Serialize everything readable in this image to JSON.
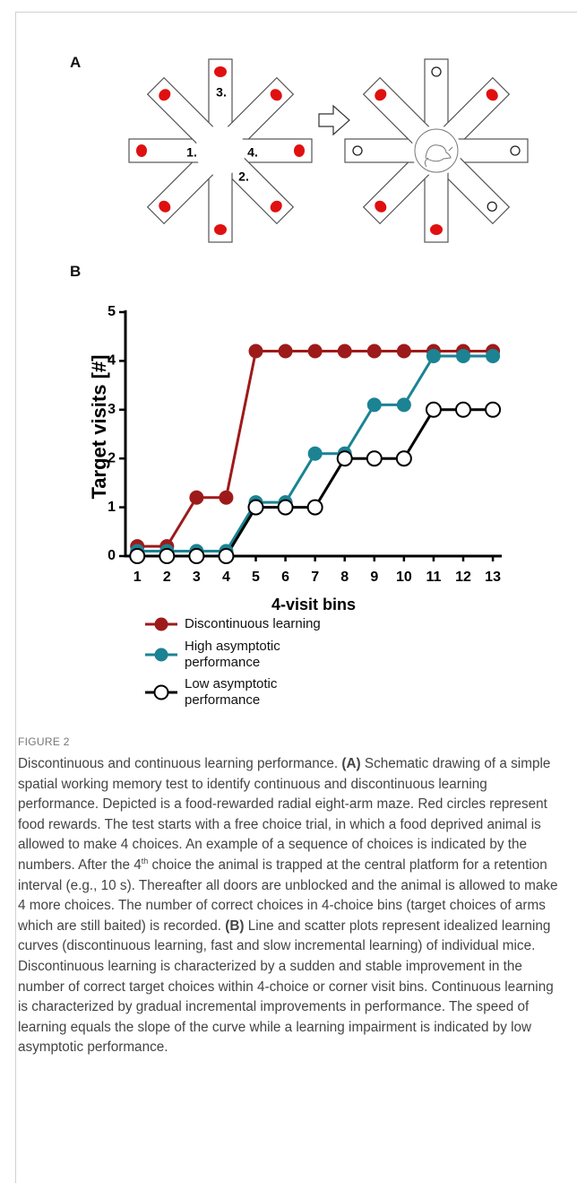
{
  "panel_a": {
    "label": "A",
    "arm_numbers": [
      "1.",
      "2.",
      "3.",
      "4."
    ]
  },
  "panel_b": {
    "label": "B"
  },
  "chart_data": {
    "type": "line",
    "ylabel": "Target visits [#]",
    "xlabel": "4-visit bins",
    "x": [
      1,
      2,
      3,
      4,
      5,
      6,
      7,
      8,
      9,
      10,
      11,
      12,
      13
    ],
    "xlim": [
      0.6,
      13.3
    ],
    "xticks": [
      1,
      2,
      3,
      4,
      5,
      6,
      7,
      8,
      9,
      10,
      11,
      12,
      13
    ],
    "ylim": [
      0,
      5
    ],
    "yticks": [
      0,
      1,
      2,
      3,
      4,
      5
    ],
    "series": [
      {
        "name": "Discontinuous learning",
        "color": "#9e1a1a",
        "values": [
          0.2,
          0.2,
          1.2,
          1.2,
          4.2,
          4.2,
          4.2,
          4.2,
          4.2,
          4.2,
          4.2,
          4.2,
          4.2
        ]
      },
      {
        "name": "High asymptotic performance",
        "color": "#1b8393",
        "values": [
          0.1,
          0.1,
          0.1,
          0.1,
          1.1,
          1.1,
          2.1,
          2.1,
          3.1,
          3.1,
          4.1,
          4.1,
          4.1
        ]
      },
      {
        "name": "Low asymptotic performance",
        "color": "#000000",
        "marker_fill": "#ffffff",
        "values": [
          0,
          0,
          0,
          0,
          1,
          1,
          1,
          2,
          2,
          2,
          3,
          3,
          3
        ]
      }
    ]
  },
  "caption": {
    "figure_label": "FIGURE 2",
    "title": "Discontinuous and continuous learning performance.",
    "a_marker": "(A)",
    "a_text_1": "Schematic drawing of a simple spatial working memory test to identify continuous and discontinuous learning performance. Depicted is a food-rewarded radial eight-arm maze. Red circles represent food rewards. The test starts with a free choice trial, in which a food deprived animal is allowed to make 4 choices. An example of a sequence of choices is indicated by the numbers. After the 4",
    "a_sup": "th",
    "a_text_2": "choice the animal is trapped at the central platform for a retention interval (e.g., 10 s). Thereafter all doors are unblocked and the animal is allowed to make 4 more choices. The number of correct choices in 4-choice bins (target choices of arms which are still baited) is recorded.",
    "b_marker": "(B)",
    "b_text": "Line and scatter plots represent idealized learning curves (discontinuous learning, fast and slow incremental learning) of individual mice. Discontinuous learning is characterized by a sudden and stable improvement in the number of correct target choices within 4-choice or corner visit bins. Continuous learning is characterized by gradual incremental improvements in performance. The speed of learning equals the slope of the curve while a learning impairment is indicated by low asymptotic performance."
  }
}
